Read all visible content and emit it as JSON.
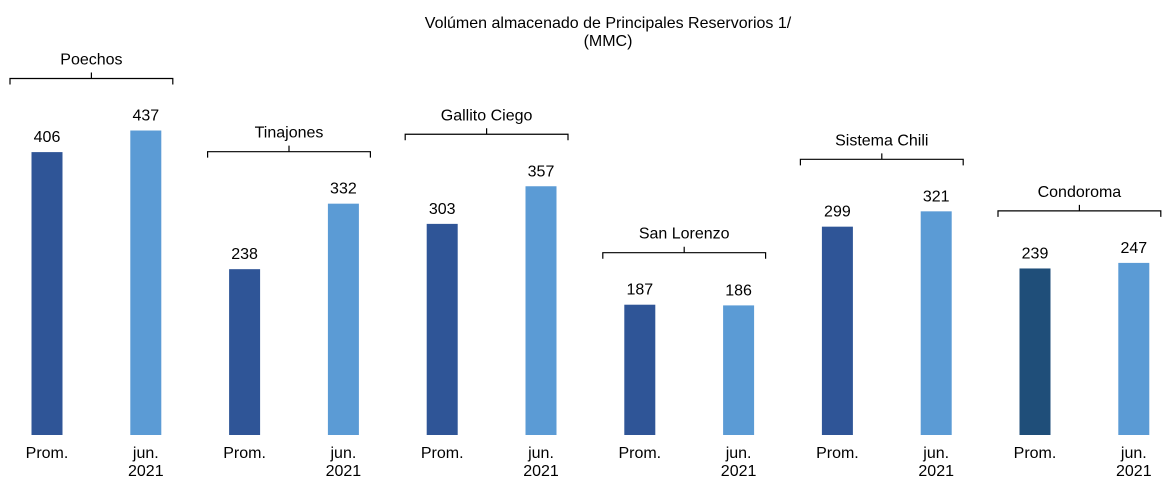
{
  "chart_data": {
    "type": "bar",
    "title": "Volúmen almacenado de Principales Reservorios 1/",
    "subtitle": "(MMC)",
    "categories": [
      "Poechos",
      "Tinajones",
      "Gallito Ciego",
      "San Lorenzo",
      "Sistema Chili",
      "Condoroma"
    ],
    "series": [
      {
        "name": "Prom.",
        "color": "#2f5597",
        "colors": [
          "#2f5597",
          "#2f5597",
          "#2f5597",
          "#2f5597",
          "#2f5597",
          "#1f4e79"
        ],
        "values": [
          406,
          238,
          303,
          187,
          299,
          239
        ]
      },
      {
        "name": "jun. 2021",
        "color": "#5b9bd5",
        "values": [
          437,
          332,
          357,
          186,
          321,
          247
        ]
      }
    ],
    "ylim": [
      0,
      620
    ]
  }
}
